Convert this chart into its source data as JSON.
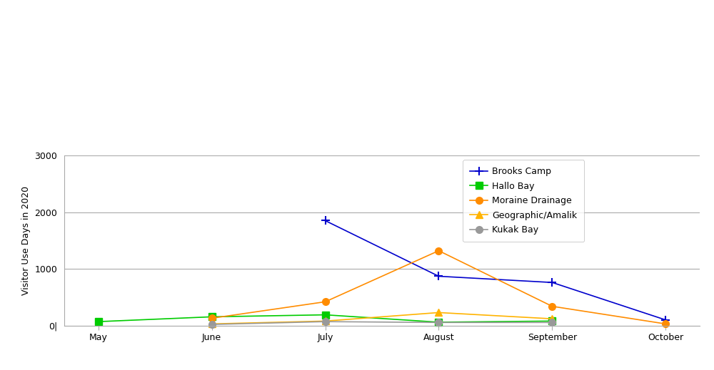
{
  "months": [
    "May",
    "June",
    "July",
    "August",
    "September",
    "October"
  ],
  "x_positions": [
    0,
    1,
    2,
    3,
    4,
    5
  ],
  "series": {
    "Brooks Camp": {
      "values": [
        null,
        null,
        1850,
        870,
        760,
        100
      ],
      "color": "#0000CC",
      "marker": "+",
      "markersize": 9,
      "markeredgewidth": 1.5,
      "linewidth": 1.2,
      "linestyle": "-"
    },
    "Hallo Bay": {
      "values": [
        70,
        155,
        190,
        60,
        80,
        null
      ],
      "color": "#00CC00",
      "marker": "s",
      "markersize": 7,
      "markeredgewidth": 1.0,
      "linewidth": 1.2,
      "linestyle": "-"
    },
    "Moraine Drainage": {
      "values": [
        null,
        130,
        420,
        1320,
        340,
        30
      ],
      "color": "#FF8C00",
      "marker": "o",
      "markersize": 7,
      "markeredgewidth": 1.0,
      "linewidth": 1.2,
      "linestyle": "-"
    },
    "Geographic/Amalik": {
      "values": [
        null,
        30,
        80,
        230,
        120,
        null
      ],
      "color": "#FFB300",
      "marker": "^",
      "markersize": 7,
      "markeredgewidth": 1.0,
      "linewidth": 1.2,
      "linestyle": "-"
    },
    "Kukak Bay": {
      "values": [
        null,
        20,
        70,
        55,
        55,
        null
      ],
      "color": "#999999",
      "marker": "o",
      "markersize": 7,
      "markeredgewidth": 1.0,
      "linewidth": 1.2,
      "linestyle": "-"
    }
  },
  "ylabel": "Visitor Use Days in 2020",
  "ylim": [
    0,
    3000
  ],
  "yticks": [
    0,
    1000,
    2000,
    3000
  ],
  "ytick_labels": [
    "0|",
    "1000",
    "2000",
    "3000"
  ],
  "title": "",
  "background_color": "#ffffff",
  "legend_loc": "upper right",
  "legend_fontsize": 9,
  "axis_fontsize": 9,
  "grid_color": "#aaaaaa",
  "grid_linewidth": 0.8,
  "spine_color": "#aaaaaa"
}
